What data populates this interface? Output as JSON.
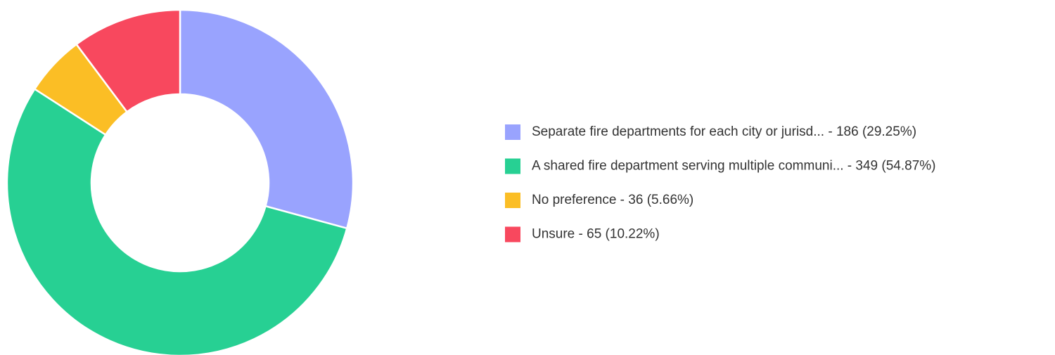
{
  "chart_data": {
    "type": "donut",
    "categories": [
      "Separate fire departments for each city or jurisd... - 186 (29.25%)",
      "A shared fire department serving multiple communi... - 349 (54.87%)",
      "No preference - 36 (5.66%)",
      "Unsure - 65 (10.22%)"
    ],
    "values": [
      186,
      349,
      36,
      65
    ],
    "colors": [
      "#99a3fe",
      "#27d093",
      "#fbbe25",
      "#f8485e"
    ]
  }
}
